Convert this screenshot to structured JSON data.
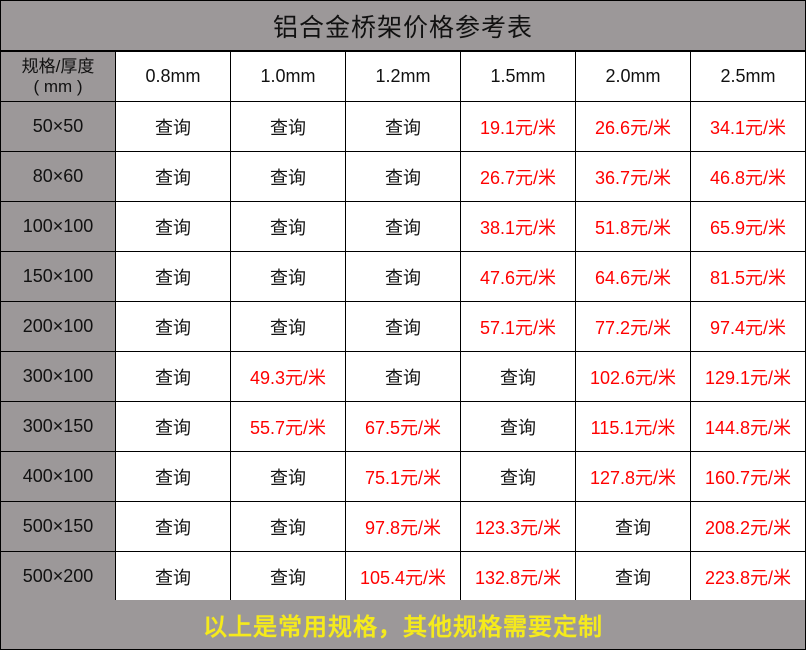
{
  "title": "铝合金桥架价格参考表",
  "header": {
    "spec_label_line1": "规格/厚度",
    "spec_label_line2": "( mm )",
    "thicknesses": [
      "0.8mm",
      "1.0mm",
      "1.2mm",
      "1.5mm",
      "2.0mm",
      "2.5mm"
    ]
  },
  "rows": [
    {
      "spec": "50×50",
      "cells": [
        "查询",
        "查询",
        "查询",
        "19.1元/米",
        "26.6元/米",
        "34.1元/米"
      ]
    },
    {
      "spec": "80×60",
      "cells": [
        "查询",
        "查询",
        "查询",
        "26.7元/米",
        "36.7元/米",
        "46.8元/米"
      ]
    },
    {
      "spec": "100×100",
      "cells": [
        "查询",
        "查询",
        "查询",
        "38.1元/米",
        "51.8元/米",
        "65.9元/米"
      ]
    },
    {
      "spec": "150×100",
      "cells": [
        "查询",
        "查询",
        "查询",
        "47.6元/米",
        "64.6元/米",
        "81.5元/米"
      ]
    },
    {
      "spec": "200×100",
      "cells": [
        "查询",
        "查询",
        "查询",
        "57.1元/米",
        "77.2元/米",
        "97.4元/米"
      ]
    },
    {
      "spec": "300×100",
      "cells": [
        "查询",
        "49.3元/米",
        "查询",
        "查询",
        "102.6元/米",
        "129.1元/米"
      ]
    },
    {
      "spec": "300×150",
      "cells": [
        "查询",
        "55.7元/米",
        "67.5元/米",
        "查询",
        "115.1元/米",
        "144.8元/米"
      ]
    },
    {
      "spec": "400×100",
      "cells": [
        "查询",
        "查询",
        "75.1元/米",
        "查询",
        "127.8元/米",
        "160.7元/米"
      ]
    },
    {
      "spec": "500×150",
      "cells": [
        "查询",
        "查询",
        "97.8元/米",
        "123.3元/米",
        "查询",
        "208.2元/米"
      ]
    },
    {
      "spec": "500×200",
      "cells": [
        "查询",
        "查询",
        "105.4元/米",
        "132.8元/米",
        "查询",
        "223.8元/米"
      ]
    }
  ],
  "footer": "以上是常用规格，其他规格需要定制",
  "colors": {
    "header_bg": "#9c9899",
    "price_text": "#ff0000",
    "footer_text": "#f5ea1c"
  }
}
